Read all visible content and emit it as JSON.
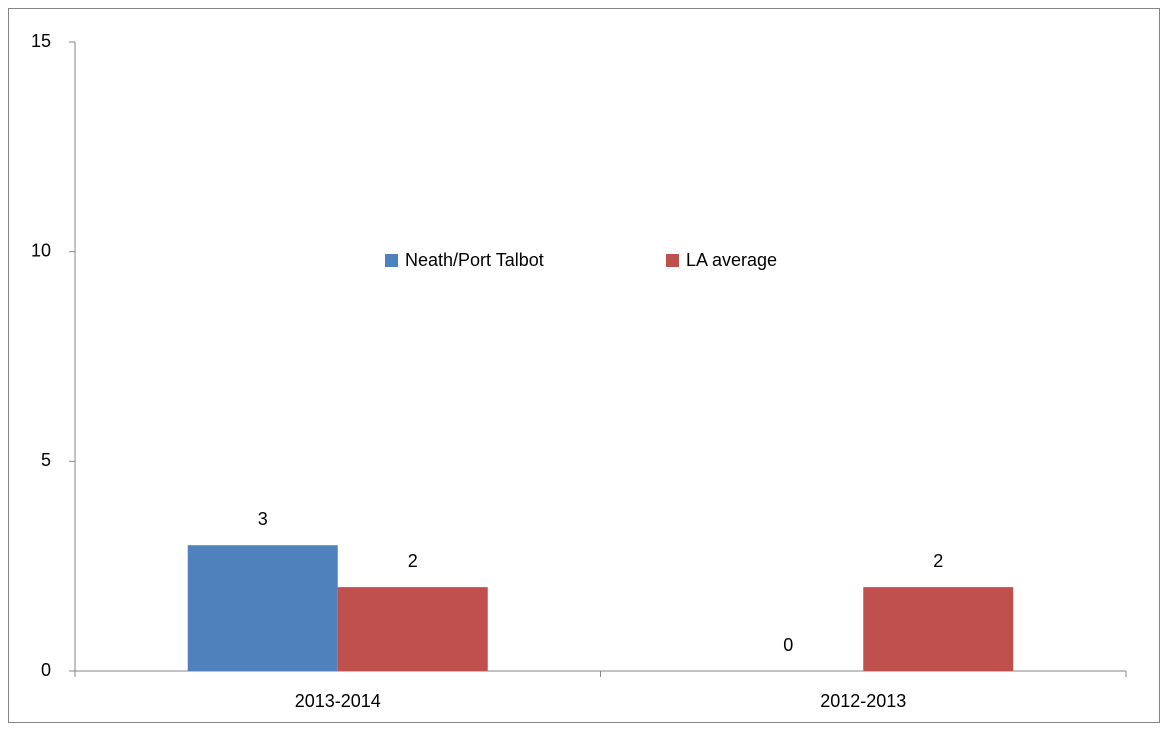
{
  "chart_data": {
    "type": "bar",
    "categories": [
      "2013-2014",
      "2012-2013"
    ],
    "series": [
      {
        "name": "Neath/Port Talbot",
        "color": "#4f81bd",
        "values": [
          3,
          0
        ]
      },
      {
        "name": "LA average",
        "color": "#c0504d",
        "values": [
          2,
          2
        ]
      }
    ],
    "ylim": [
      0,
      15
    ],
    "yticks": [
      0,
      5,
      10,
      15
    ],
    "grid": false,
    "legend": "center",
    "data_labels": true
  }
}
